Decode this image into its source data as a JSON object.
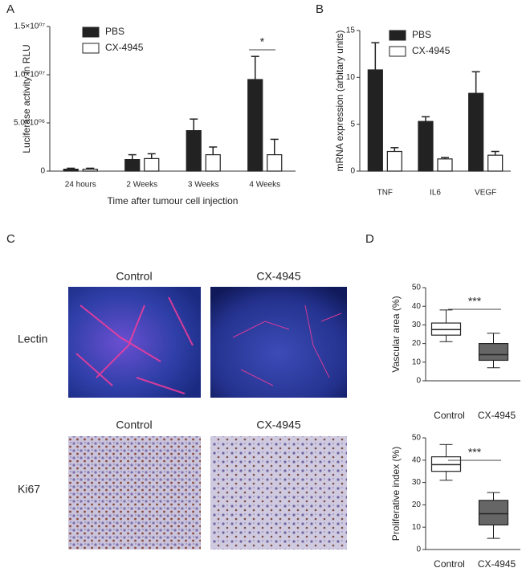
{
  "chart_data": [
    {
      "type": "bar",
      "panel_label": "A",
      "y_label": "Luciferase activity in RLU",
      "x_label": "Time after tumour cell injection",
      "categories": [
        "24 hours",
        "2 Weeks",
        "3 Weeks",
        "4 Weeks"
      ],
      "series": [
        {
          "name": "PBS",
          "color": "#222222",
          "values": [
            200000,
            1200000,
            4200000,
            9500000
          ],
          "errors": [
            100000,
            500000,
            1200000,
            2400000
          ]
        },
        {
          "name": "CX-4945",
          "color": "#ffffff",
          "values": [
            200000,
            1300000,
            1700000,
            1700000
          ],
          "errors": [
            100000,
            500000,
            800000,
            1600000
          ]
        }
      ],
      "ylim": [
        0,
        15000000
      ],
      "yticks": [
        0,
        {
          "value": 5000000,
          "label": "5.0×10⁰⁶"
        },
        {
          "value": 10000000,
          "label": "1.0×10⁰⁷"
        },
        {
          "value": 15000000,
          "label": "1.5×10⁰⁷"
        }
      ],
      "annotation": "*"
    },
    {
      "type": "bar",
      "panel_label": "B",
      "y_label": "mRNA expression (arbitary units)",
      "categories": [
        "TNF",
        "IL6",
        "VEGF"
      ],
      "series": [
        {
          "name": "PBS",
          "color": "#222222",
          "values": [
            10.8,
            5.3,
            8.3
          ],
          "errors": [
            2.9,
            0.5,
            2.3
          ]
        },
        {
          "name": "CX-4945",
          "color": "#ffffff",
          "values": [
            2.1,
            1.3,
            1.7
          ],
          "errors": [
            0.4,
            0.15,
            0.4
          ]
        }
      ],
      "ylim": [
        0,
        15
      ],
      "yticks": [
        0,
        5,
        10,
        15
      ]
    },
    {
      "type": "box",
      "panel_label": "D",
      "y_label": "Vascular area (%)",
      "categories": [
        "Control",
        "CX-4945"
      ],
      "colors": [
        "#ffffff",
        "#666666"
      ],
      "boxes": [
        {
          "whislo": 21,
          "q1": 24.5,
          "med": 27.5,
          "q3": 31,
          "whishi": 38
        },
        {
          "whislo": 7,
          "q1": 11,
          "med": 14,
          "q3": 20,
          "whishi": 25.5
        }
      ],
      "ylim": [
        0,
        50
      ],
      "yticks": [
        0,
        10,
        20,
        30,
        40,
        50
      ],
      "annotation": "***"
    },
    {
      "type": "box",
      "y_label": "Proliferative index (%)",
      "categories": [
        "Control",
        "CX-4945"
      ],
      "colors": [
        "#ffffff",
        "#666666"
      ],
      "boxes": [
        {
          "whislo": 31,
          "q1": 35,
          "med": 38,
          "q3": 41.5,
          "whishi": 47
        },
        {
          "whislo": 5,
          "q1": 11,
          "med": 16,
          "q3": 22,
          "whishi": 25.5
        }
      ],
      "ylim": [
        0,
        50
      ],
      "yticks": [
        0,
        10,
        20,
        30,
        40,
        50
      ],
      "annotation": "***"
    }
  ],
  "images": {
    "panel_label": "C",
    "rows": [
      {
        "label": "Lectin",
        "columns": [
          "Control",
          "CX-4945"
        ]
      },
      {
        "label": "Ki67",
        "columns": [
          "Control",
          "CX-4945"
        ]
      }
    ]
  }
}
